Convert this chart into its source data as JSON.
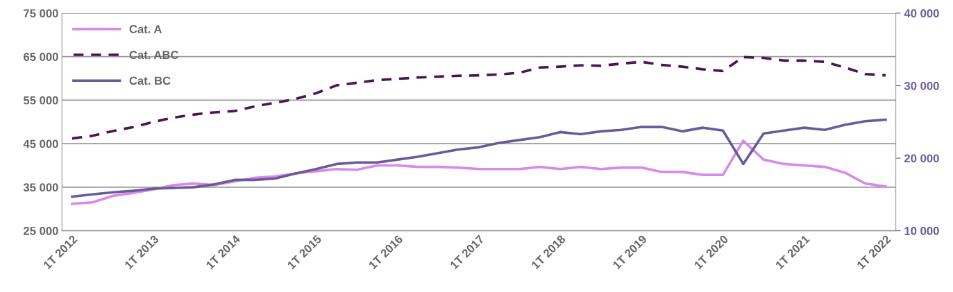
{
  "chart_data": {
    "type": "line",
    "categories": [
      "1T 2012",
      null,
      null,
      null,
      "1T 2013",
      null,
      null,
      null,
      "1T 2014",
      null,
      null,
      null,
      "1T 2015",
      null,
      null,
      null,
      "1T 2016",
      null,
      null,
      null,
      "1T 2017",
      null,
      null,
      null,
      "1T 2018",
      null,
      null,
      null,
      "1T 2019",
      null,
      null,
      null,
      "1T 2020",
      null,
      null,
      null,
      "1T 2021",
      null,
      null,
      null,
      "1T 2022"
    ],
    "series": [
      {
        "name": "Cat. A",
        "color": "#d98ae8",
        "axis": "y2",
        "line_style": "solid",
        "values": [
          13700,
          13900,
          14800,
          15200,
          15700,
          16300,
          16500,
          16300,
          16800,
          17300,
          17500,
          17900,
          18200,
          18500,
          18400,
          19000,
          19000,
          18800,
          18800,
          18700,
          18500,
          18500,
          18500,
          18800,
          18500,
          18800,
          18500,
          18700,
          18700,
          18100,
          18100,
          17700,
          17700,
          22400,
          19800,
          19200,
          19000,
          18800,
          18000,
          16500,
          16100
        ]
      },
      {
        "name": "Cat. ABC",
        "color": "#4a1450",
        "axis": "y",
        "line_style": "dashed",
        "values": [
          46200,
          46800,
          47900,
          48800,
          50000,
          51000,
          51700,
          52200,
          52500,
          53600,
          54400,
          55300,
          56600,
          58400,
          59000,
          59600,
          59900,
          60200,
          60400,
          60600,
          60700,
          60900,
          61300,
          62500,
          62700,
          63000,
          62900,
          63400,
          63800,
          63100,
          62700,
          62100,
          61700,
          64900,
          64700,
          64100,
          64100,
          63800,
          62500,
          61000,
          60700
        ]
      },
      {
        "name": "Cat. BC",
        "color": "#6a5a9a",
        "axis": "y2",
        "line_style": "solid",
        "values": [
          14700,
          15000,
          15300,
          15500,
          15800,
          15900,
          16000,
          16400,
          17000,
          17000,
          17200,
          17900,
          18500,
          19200,
          19400,
          19400,
          19800,
          20200,
          20700,
          21200,
          21500,
          22100,
          22500,
          22900,
          23600,
          23300,
          23700,
          23900,
          24300,
          24300,
          23700,
          24200,
          23800,
          19200,
          23400,
          23800,
          24200,
          23900,
          24600,
          25100,
          25300
        ]
      }
    ],
    "ylim": [
      25000,
      75000
    ],
    "yticks": [
      {
        "value": 25000,
        "label": "25 000"
      },
      {
        "value": 35000,
        "label": "35 000"
      },
      {
        "value": 45000,
        "label": "45 000"
      },
      {
        "value": 55000,
        "label": "55 000"
      },
      {
        "value": 65000,
        "label": "65 000"
      },
      {
        "value": 75000,
        "label": "75 000"
      }
    ],
    "y2lim": [
      10000,
      40000
    ],
    "y2ticks": [
      {
        "value": 10000,
        "label": "10 000"
      },
      {
        "value": 20000,
        "label": "20 000"
      },
      {
        "value": 30000,
        "label": "30 000"
      },
      {
        "value": 40000,
        "label": "40 000"
      }
    ],
    "grid": "y",
    "legend": "top left",
    "marker": "none"
  }
}
